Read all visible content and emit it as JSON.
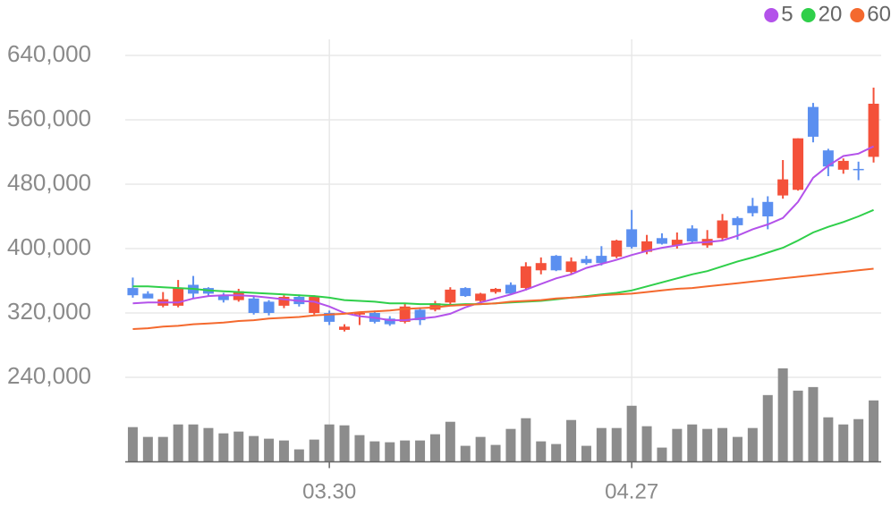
{
  "chart_data": {
    "type": "candlestick",
    "categories": [
      null,
      null,
      null,
      null,
      null,
      null,
      null,
      null,
      null,
      null,
      null,
      null,
      null,
      "03.30",
      null,
      null,
      null,
      null,
      null,
      null,
      null,
      null,
      null,
      null,
      null,
      null,
      null,
      null,
      null,
      null,
      null,
      null,
      null,
      "04.27",
      null,
      null,
      null,
      null,
      null,
      null,
      null,
      null,
      null,
      null,
      null,
      null,
      null,
      null,
      null,
      null
    ],
    "open": [
      351000,
      344000,
      329000,
      329000,
      355000,
      351000,
      342000,
      336000,
      338000,
      334000,
      329000,
      340000,
      320000,
      320000,
      299000,
      318000,
      320000,
      313000,
      309000,
      324000,
      324000,
      333000,
      351000,
      335000,
      346000,
      355000,
      351000,
      373000,
      391000,
      371000,
      387000,
      391000,
      390000,
      424000,
      396000,
      413000,
      404000,
      425000,
      404000,
      413000,
      438000,
      453000,
      458000,
      466000,
      473000,
      576000,
      522000,
      498000,
      499000,
      514000
    ],
    "high": [
      364000,
      347000,
      346000,
      361000,
      366000,
      352000,
      345000,
      350000,
      341000,
      336000,
      342000,
      343000,
      342000,
      323000,
      306000,
      321000,
      323000,
      316000,
      332000,
      327000,
      335000,
      352000,
      352000,
      345000,
      351000,
      358000,
      383000,
      389000,
      392000,
      389000,
      391000,
      403000,
      411000,
      448000,
      417000,
      419000,
      420000,
      429000,
      423000,
      443000,
      440000,
      463000,
      465000,
      510000,
      537000,
      581000,
      524000,
      512000,
      508000,
      600000
    ],
    "low": [
      339000,
      340000,
      327000,
      327000,
      338000,
      340000,
      333000,
      334000,
      318000,
      317000,
      326000,
      328000,
      318000,
      305000,
      297000,
      305000,
      307000,
      304000,
      307000,
      305000,
      322000,
      330000,
      340000,
      332000,
      344000,
      343000,
      348000,
      368000,
      372000,
      369000,
      380000,
      379000,
      388000,
      400000,
      393000,
      405000,
      400000,
      406000,
      401000,
      410000,
      411000,
      440000,
      424000,
      462000,
      472000,
      532000,
      490000,
      493000,
      485000,
      507000
    ],
    "close": [
      342000,
      338000,
      337000,
      351000,
      344000,
      344000,
      336000,
      347000,
      320000,
      320000,
      340000,
      331000,
      340000,
      309000,
      303000,
      320000,
      309000,
      306000,
      328000,
      311000,
      332000,
      349000,
      341000,
      344000,
      350000,
      344000,
      378000,
      382000,
      373000,
      384000,
      382000,
      382000,
      410000,
      402000,
      409000,
      406000,
      411000,
      409000,
      412000,
      435000,
      429000,
      444000,
      440000,
      486000,
      537000,
      539000,
      502000,
      509000,
      498000,
      580000
    ],
    "up_color": "#f4513a",
    "down_color": "#5b8ff0",
    "series": [
      {
        "name": "5",
        "color": "#b352ea",
        "values": [
          332000,
          333000,
          333000,
          333000,
          338000,
          341000,
          342000,
          342000,
          341000,
          339000,
          337000,
          335000,
          334000,
          328000,
          320000,
          316000,
          314000,
          311000,
          311000,
          313000,
          315000,
          319000,
          327000,
          333000,
          338000,
          343000,
          349000,
          356000,
          363000,
          368000,
          376000,
          381000,
          386000,
          392000,
          397000,
          401000,
          404000,
          407000,
          408000,
          410000,
          416000,
          424000,
          430000,
          438000,
          458000,
          488000,
          503000,
          515000,
          518000,
          527000
        ]
      },
      {
        "name": "20",
        "color": "#2fcf4a",
        "values": [
          353000,
          353000,
          352000,
          351000,
          350000,
          348000,
          347000,
          346000,
          345000,
          344000,
          343000,
          342000,
          341000,
          339000,
          336000,
          335000,
          334000,
          332000,
          332000,
          331000,
          331000,
          330000,
          331000,
          331000,
          332000,
          333000,
          334000,
          335000,
          337000,
          339000,
          341000,
          343000,
          345000,
          348000,
          353000,
          358000,
          363000,
          368000,
          372000,
          378000,
          384000,
          389000,
          395000,
          401000,
          410000,
          420000,
          427000,
          433000,
          440000,
          448000
        ]
      },
      {
        "name": "60",
        "color": "#f4692e",
        "values": [
          300000,
          301000,
          303000,
          304000,
          306000,
          307000,
          308000,
          310000,
          311000,
          313000,
          314000,
          315000,
          317000,
          318000,
          319000,
          321000,
          322000,
          323000,
          325000,
          326000,
          327000,
          329000,
          330000,
          331000,
          332000,
          334000,
          335000,
          336000,
          338000,
          339000,
          340000,
          342000,
          343000,
          344000,
          346000,
          348000,
          350000,
          351000,
          353000,
          355000,
          357000,
          359000,
          361000,
          363000,
          365000,
          367000,
          369000,
          371000,
          373000,
          375000
        ]
      }
    ],
    "volume": {
      "color": "#8c8c8c",
      "values": [
        39,
        28,
        28,
        42,
        42,
        38,
        32,
        34,
        29,
        26,
        24,
        14,
        25,
        42,
        41,
        30,
        23,
        22,
        24,
        24,
        31,
        45,
        18,
        28,
        19,
        37,
        49,
        23,
        20,
        47,
        18,
        38,
        38,
        63,
        40,
        16,
        37,
        42,
        37,
        38,
        28,
        38,
        75,
        105,
        80,
        84,
        50,
        42,
        48,
        69
      ]
    },
    "ylim": [
      135000,
      660000
    ],
    "yticks": [
      {
        "value": 240000,
        "label": "240,000"
      },
      {
        "value": 320000,
        "label": "320,000"
      },
      {
        "value": 400000,
        "label": "400,000"
      },
      {
        "value": 480000,
        "label": "480,000"
      },
      {
        "value": 560000,
        "label": "560,000"
      },
      {
        "value": 640000,
        "label": "640,000"
      }
    ],
    "y2lim": [
      0,
      115
    ],
    "grid": true
  }
}
